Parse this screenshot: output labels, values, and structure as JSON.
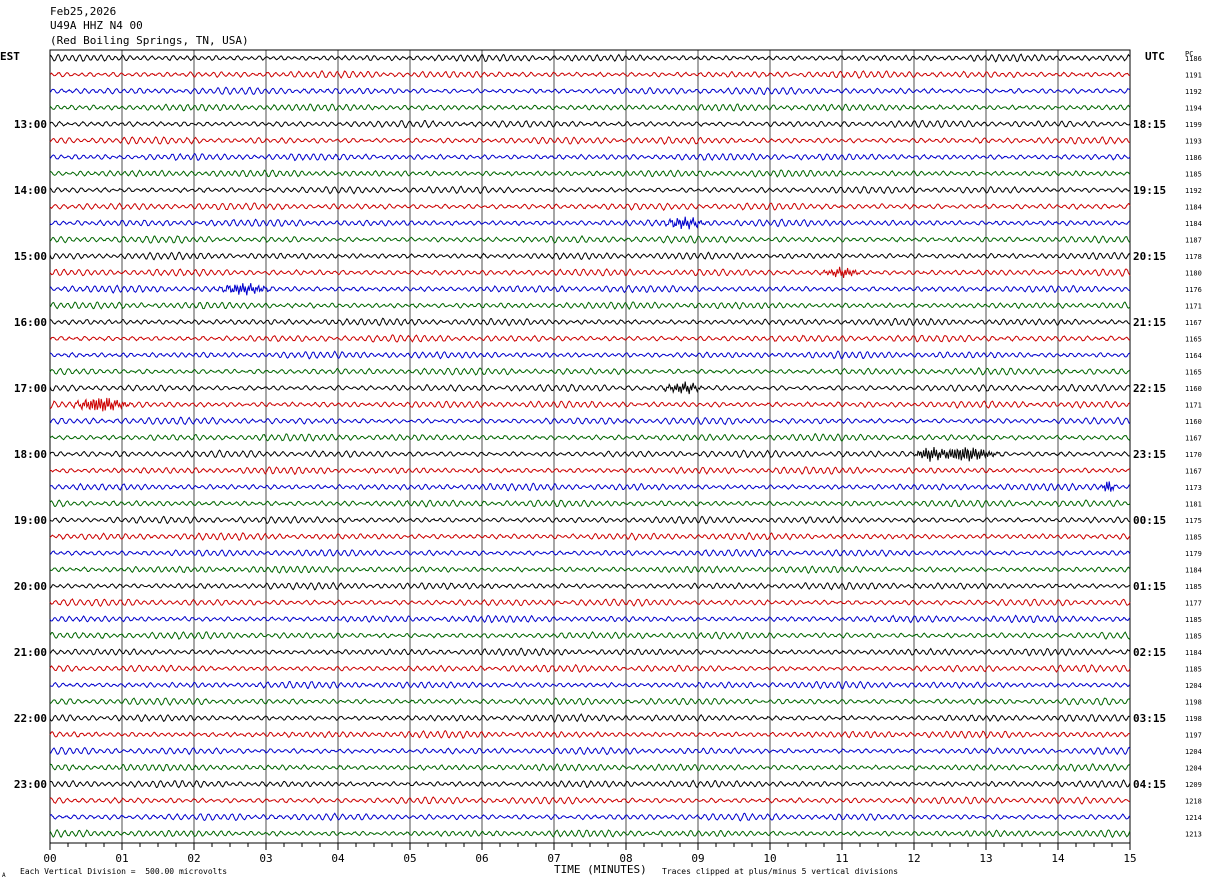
{
  "header": {
    "date": "Feb25,2026",
    "station": "U49A HHZ N4 00",
    "location": "(Red Boiling Springs, TN, USA)"
  },
  "left_label": "EST",
  "right_label": "UTC",
  "right_col_label": "PC",
  "footer": {
    "scale_note": "Each Vertical Division =  500.00 microvolts",
    "xlabel": "TIME (MINUTES)",
    "clip_note": "Traces clipped at plus/minus 5 vertical divisions",
    "corner_mark": "A"
  },
  "chart_data": {
    "type": "line",
    "title": "U49A HHZ N4 00",
    "xlabel": "TIME (MINUTES)",
    "xlim": [
      0,
      15
    ],
    "x_ticks": [
      "00",
      "01",
      "02",
      "03",
      "04",
      "05",
      "06",
      "07",
      "08",
      "09",
      "10",
      "11",
      "12",
      "13",
      "14",
      "15"
    ],
    "trace_colors": [
      "#000000",
      "#cc0000",
      "#0000cc",
      "#006600"
    ],
    "left_hour_labels": [
      {
        "row": 4,
        "label": "13:00"
      },
      {
        "row": 8,
        "label": "14:00"
      },
      {
        "row": 12,
        "label": "15:00"
      },
      {
        "row": 16,
        "label": "16:00"
      },
      {
        "row": 20,
        "label": "17:00"
      },
      {
        "row": 24,
        "label": "18:00"
      },
      {
        "row": 28,
        "label": "19:00"
      },
      {
        "row": 32,
        "label": "20:00"
      },
      {
        "row": 36,
        "label": "21:00"
      },
      {
        "row": 40,
        "label": "22:00"
      },
      {
        "row": 44,
        "label": "23:00"
      }
    ],
    "right_hour_labels": [
      {
        "row": 4,
        "label": "18:15"
      },
      {
        "row": 8,
        "label": "19:15"
      },
      {
        "row": 12,
        "label": "20:15"
      },
      {
        "row": 16,
        "label": "21:15"
      },
      {
        "row": 20,
        "label": "22:15"
      },
      {
        "row": 24,
        "label": "23:15"
      },
      {
        "row": 28,
        "label": "00:15"
      },
      {
        "row": 32,
        "label": "01:15"
      },
      {
        "row": 36,
        "label": "02:15"
      },
      {
        "row": 40,
        "label": "03:15"
      },
      {
        "row": 44,
        "label": "04:15"
      }
    ],
    "row_counts": [
      "1186",
      "1191",
      "1192",
      "1194",
      "1199",
      "1193",
      "1186",
      "1185",
      "1192",
      "1184",
      "1184",
      "1187",
      "1178",
      "1180",
      "1176",
      "1171",
      "1167",
      "1165",
      "1164",
      "1165",
      "1160",
      "1171",
      "1160",
      "1167",
      "1170",
      "1167",
      "1173",
      "1181",
      "1175",
      "1185",
      "1179",
      "1184",
      "1185",
      "1177",
      "1185",
      "1185",
      "1184",
      "1185",
      "1204",
      "1198",
      "1198",
      "1197",
      "1204",
      "1204",
      "1209",
      "1218",
      "1214",
      "1213"
    ],
    "events": [
      {
        "row": 14,
        "minute": 2.7,
        "width_min": 0.4,
        "amp": 1.4
      },
      {
        "row": 21,
        "minute": 0.7,
        "width_min": 0.4,
        "amp": 2.0
      },
      {
        "row": 24,
        "minute": 12.7,
        "width_min": 0.5,
        "amp": 2.0
      },
      {
        "row": 24,
        "minute": 12.2,
        "width_min": 0.2,
        "amp": 1.6
      },
      {
        "row": 26,
        "minute": 14.7,
        "width_min": 0.1,
        "amp": 1.6
      },
      {
        "row": 13,
        "minute": 11.0,
        "width_min": 0.3,
        "amp": 1.2
      },
      {
        "row": 20,
        "minute": 8.8,
        "width_min": 0.3,
        "amp": 1.4
      },
      {
        "row": 10,
        "minute": 8.8,
        "width_min": 0.3,
        "amp": 1.4
      }
    ]
  }
}
